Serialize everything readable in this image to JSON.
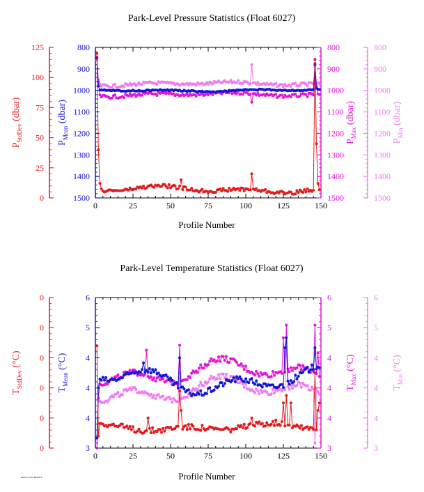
{
  "colors": {
    "stddev": "#e41a1c",
    "mean": "#1515d6",
    "max": "#e414d8",
    "min": "#f07cf0",
    "axis": "#000000"
  },
  "footer_text": "PARK LEVEL PROFILE",
  "chart_data": [
    {
      "type": "line",
      "title": "Park-Level Pressure Statistics (Float 6027)",
      "xlabel": "Profile Number",
      "xlim": [
        0,
        150
      ],
      "x_ticks": [
        "0",
        "25",
        "50",
        "75",
        "100",
        "125",
        "150"
      ],
      "axes": {
        "stddev": {
          "label": "P",
          "sub": "StdDev",
          "unit": " (dbar)",
          "ticks": [
            "125",
            "100",
            "75",
            "50",
            "25",
            "0"
          ],
          "lim": [
            0,
            125
          ]
        },
        "mean": {
          "label": "P",
          "sub": "Mean",
          "unit": " (dbar)",
          "ticks": [
            "800",
            "900",
            "1000",
            "1100",
            "1200",
            "1300",
            "1400",
            "1500"
          ],
          "lim": [
            1500,
            800
          ]
        },
        "max": {
          "label": "P",
          "sub": "Max",
          "unit": " (dbar)",
          "ticks": [
            "800",
            "900",
            "1000",
            "1100",
            "1200",
            "1300",
            "1400",
            "1500"
          ],
          "lim": [
            1500,
            800
          ]
        },
        "min": {
          "label": "P",
          "sub": "Min",
          "unit": " (dbar)",
          "ticks": [
            "800",
            "900",
            "1000",
            "1100",
            "1200",
            "1300",
            "1400",
            "1500"
          ],
          "lim": [
            1500,
            800
          ]
        }
      },
      "series": [
        {
          "key": "stddev",
          "base": 7,
          "amp": 3,
          "noise": 1.5,
          "spikes": [
            [
              1,
              120
            ],
            [
              2,
              40
            ],
            [
              3,
              12
            ],
            [
              57,
              15
            ],
            [
              104,
              20
            ],
            [
              146,
              115
            ],
            [
              147,
              45
            ],
            [
              148,
              12
            ]
          ]
        },
        {
          "key": "mean",
          "base": 1000,
          "amp": 6,
          "noise": 3,
          "spikes": [
            [
              1,
              850
            ],
            [
              2,
              980
            ],
            [
              146,
              880
            ],
            [
              147,
              990
            ]
          ]
        },
        {
          "key": "max",
          "base": 1020,
          "amp": 10,
          "noise": 8,
          "spikes": [
            [
              1,
              845
            ],
            [
              2,
              960
            ],
            [
              104,
              1055
            ],
            [
              146,
              875
            ],
            [
              147,
              980
            ]
          ]
        },
        {
          "key": "min",
          "base": 970,
          "amp": 10,
          "noise": 8,
          "spikes": [
            [
              1,
              860
            ],
            [
              2,
              950
            ],
            [
              104,
              880
            ],
            [
              146,
              890
            ]
          ]
        }
      ]
    },
    {
      "type": "line",
      "title": "Park-Level Temperature Statistics (Float 6027)",
      "xlabel": "Profile Number",
      "xlim": [
        0,
        150
      ],
      "x_ticks": [
        "0",
        "25",
        "50",
        "75",
        "100",
        "125",
        "150"
      ],
      "axes": {
        "stddev": {
          "label": "T",
          "sub": "StdDev",
          "unit": " (°C)",
          "ticks": [
            "0",
            "0",
            "0",
            "0",
            "0",
            "0"
          ],
          "lim": [
            0,
            1
          ]
        },
        "mean": {
          "label": "T",
          "sub": "Mean",
          "unit": " (°C)",
          "ticks": [
            "6",
            "5",
            "4",
            "4",
            "4",
            "3"
          ],
          "lim": [
            3,
            6
          ]
        },
        "max": {
          "label": "T",
          "sub": "Max",
          "unit": " (°C)",
          "ticks": [
            "6",
            "5",
            "4",
            "4",
            "4",
            "3"
          ],
          "lim": [
            3,
            6
          ]
        },
        "min": {
          "label": "T",
          "sub": "Min",
          "unit": " (°C)",
          "ticks": [
            "6",
            "5",
            "4",
            "4",
            "4",
            "3"
          ],
          "lim": [
            3,
            6
          ]
        }
      },
      "series": [
        {
          "key": "stddev",
          "base": 0.14,
          "amp": 0.03,
          "noise": 0.02,
          "spikes": [
            [
              1,
              0.68
            ],
            [
              2,
              0.08
            ],
            [
              35,
              0.2
            ],
            [
              56,
              0.38
            ],
            [
              57,
              0.25
            ],
            [
              104,
              0.2
            ],
            [
              125,
              0.3
            ],
            [
              127,
              0.35
            ],
            [
              130,
              0.3
            ],
            [
              146,
              0.5
            ],
            [
              148,
              0.25
            ],
            [
              149,
              0.3
            ]
          ]
        },
        {
          "key": "mean",
          "base": 4.35,
          "amp": 0.3,
          "noise": 0.06,
          "spikes": [
            [
              1,
              3.2
            ],
            [
              2,
              4.2
            ],
            [
              32,
              4.7
            ],
            [
              56,
              4.8
            ],
            [
              126,
              5.0
            ],
            [
              127,
              5.2
            ],
            [
              146,
              5.0
            ]
          ]
        },
        {
          "key": "max",
          "base": 4.5,
          "amp": 0.3,
          "noise": 0.06,
          "spikes": [
            [
              1,
              3.0
            ],
            [
              2,
              4.0
            ],
            [
              34,
              4.95
            ],
            [
              56,
              5.05
            ],
            [
              125,
              5.2
            ],
            [
              127,
              5.45
            ],
            [
              146,
              5.45
            ],
            [
              148,
              4.9
            ]
          ]
        },
        {
          "key": "min",
          "base": 4.15,
          "amp": 0.3,
          "noise": 0.06,
          "spikes": [
            [
              1,
              3.1
            ],
            [
              2,
              4.0
            ],
            [
              56,
              4.5
            ],
            [
              127,
              5.0
            ],
            [
              146,
              3.1
            ],
            [
              147,
              4.2
            ]
          ]
        }
      ]
    }
  ]
}
